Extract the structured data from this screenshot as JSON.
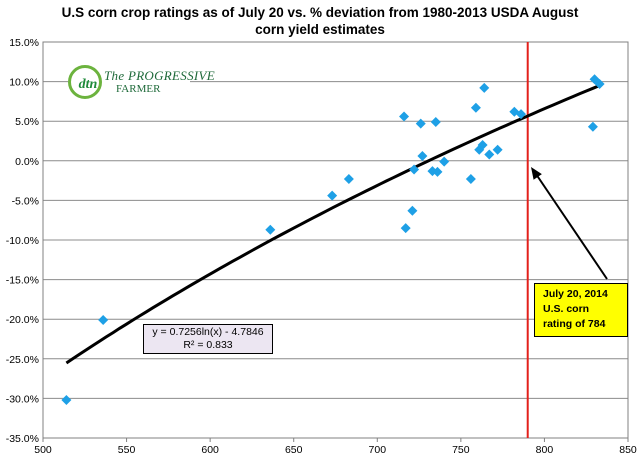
{
  "title_line1": "U.S corn crop ratings as of July 20 vs. %  deviation from  1980-2013 USDA August",
  "title_line2": "corn yield estimates",
  "logo": {
    "mark": "dtn",
    "line1": "The PROGRESSIVE",
    "line2": "FARMER"
  },
  "equation": {
    "line1": "y = 0.7256ln(x) - 4.7846",
    "line2": "R² = 0.833"
  },
  "callout": {
    "line1": "July 20, 2014",
    "line2": "U.S. corn",
    "line3": "rating of 784"
  },
  "colors": {
    "points": "#1ea0e6",
    "trend": "#000000",
    "marker_line": "#e3201b",
    "callout_bg": "#ffff00"
  },
  "chart_data": {
    "type": "scatter",
    "title": "U.S corn crop ratings as of July 20 vs. %  deviation from  1980-2013 USDA August corn yield estimates",
    "xlim": [
      500,
      850
    ],
    "ylim": [
      -35,
      15
    ],
    "x_ticks": [
      500,
      550,
      600,
      650,
      700,
      750,
      800,
      850
    ],
    "y_ticks": [
      -35,
      -30,
      -25,
      -20,
      -15,
      -10,
      -5,
      0,
      5,
      10,
      15
    ],
    "x_tick_labels": [
      "500",
      "550",
      "600",
      "650",
      "700",
      "750",
      "800",
      "850"
    ],
    "y_tick_labels": [
      "-35.0%",
      "-30.0%",
      "-25.0%",
      "-20.0%",
      "-15.0%",
      "-10.0%",
      "-5.0%",
      "0.0%",
      "5.0%",
      "10.0%",
      "15.0%"
    ],
    "grid": "horizontal",
    "points": [
      [
        514,
        -30.2
      ],
      [
        536,
        -20.1
      ],
      [
        636,
        -8.7
      ],
      [
        673,
        -4.4
      ],
      [
        683,
        -2.3
      ],
      [
        716,
        5.6
      ],
      [
        717,
        -8.5
      ],
      [
        721,
        -6.3
      ],
      [
        722,
        -1.1
      ],
      [
        726,
        4.7
      ],
      [
        727,
        0.6
      ],
      [
        733,
        -1.3
      ],
      [
        735,
        4.9
      ],
      [
        736,
        -1.4
      ],
      [
        740,
        -0.1
      ],
      [
        756,
        -2.3
      ],
      [
        759,
        6.7
      ],
      [
        761,
        1.4
      ],
      [
        763,
        2.0
      ],
      [
        764,
        9.2
      ],
      [
        767,
        0.8
      ],
      [
        772,
        1.4
      ],
      [
        782,
        6.2
      ],
      [
        786,
        5.9
      ],
      [
        829,
        4.3
      ],
      [
        830,
        10.3
      ],
      [
        833,
        9.7
      ]
    ],
    "trendline": {
      "type": "logarithmic",
      "a": 0.7256,
      "b": -4.7846,
      "x_from": 514,
      "x_to": 833
    },
    "vertical_marker_x": 790
  }
}
